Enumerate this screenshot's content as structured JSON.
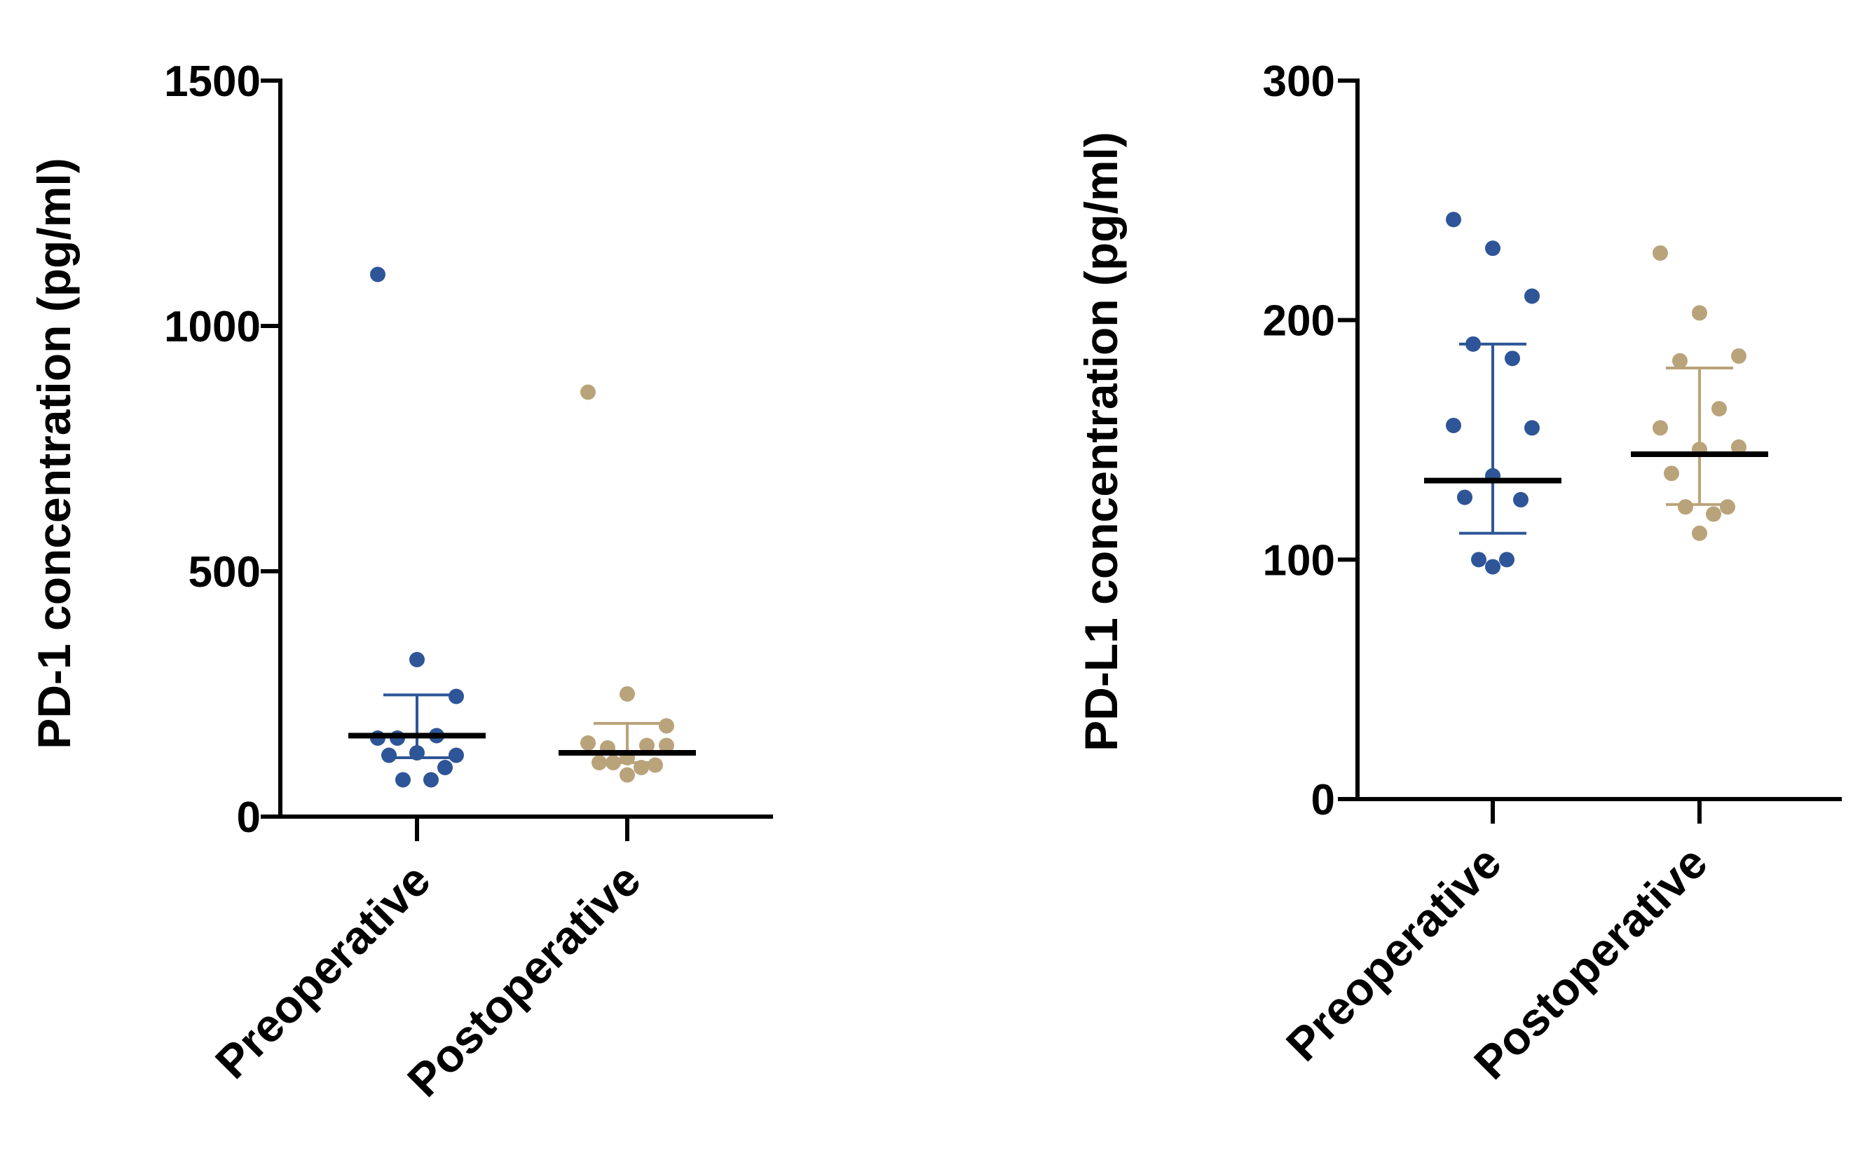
{
  "colors": {
    "preoperative": "#2e5597",
    "postoperative": "#b9a37a",
    "axis": "#000000"
  },
  "chart_data": [
    {
      "type": "scatter",
      "title": "",
      "xlabel": "",
      "ylabel": "PD-1 concentration (pg/ml)",
      "ylim": [
        0,
        1500
      ],
      "yticks": [
        0,
        500,
        1000,
        1500
      ],
      "grid": false,
      "categories": [
        "Preoperative",
        "Postoperative"
      ],
      "series": [
        {
          "color_key": "preoperative",
          "points": [
            1105,
            320,
            245,
            160,
            165,
            160,
            125,
            130,
            125,
            100,
            75,
            75
          ],
          "median": 165,
          "err_low": 120,
          "err_high": 248
        },
        {
          "color_key": "postoperative",
          "points": [
            865,
            250,
            185,
            140,
            145,
            150,
            145,
            120,
            110,
            105,
            110,
            100,
            85
          ],
          "median": 130,
          "err_low": 110,
          "err_high": 190
        }
      ]
    },
    {
      "type": "scatter",
      "title": "",
      "xlabel": "",
      "ylabel": "PD-L1 concentration (pg/ml)",
      "ylim": [
        0,
        300
      ],
      "yticks": [
        0,
        100,
        200,
        300
      ],
      "grid": false,
      "categories": [
        "Preoperative",
        "Postoperative"
      ],
      "series": [
        {
          "color_key": "preoperative",
          "points": [
            242,
            230,
            210,
            190,
            184,
            156,
            155,
            135,
            126,
            125,
            100,
            100,
            97
          ],
          "median": 133,
          "err_low": 111,
          "err_high": 190
        },
        {
          "color_key": "postoperative",
          "points": [
            228,
            203,
            185,
            183,
            163,
            155,
            147,
            146,
            136,
            122,
            122,
            119,
            111
          ],
          "median": 144,
          "err_low": 123,
          "err_high": 180
        }
      ]
    }
  ]
}
